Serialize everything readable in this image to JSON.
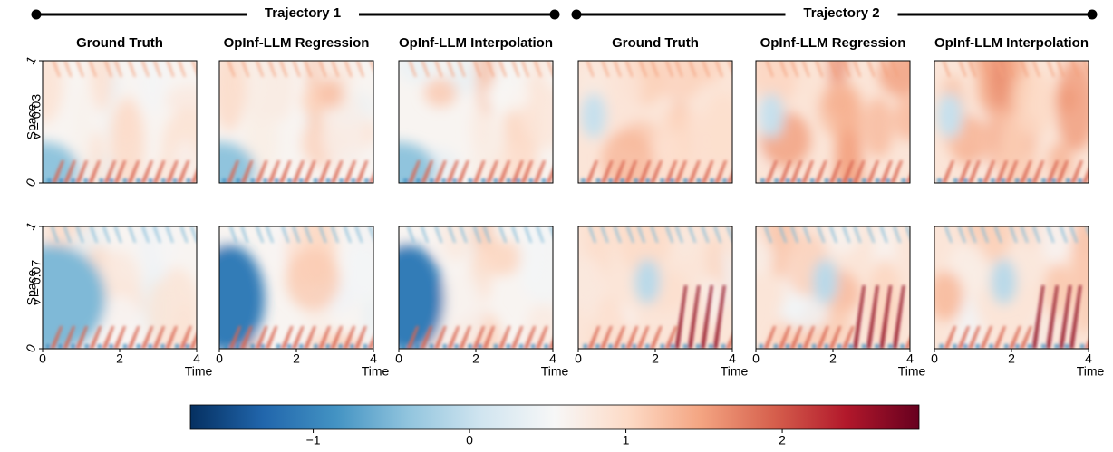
{
  "trajectories": [
    {
      "title": "Trajectory 1",
      "columns": [
        "Ground Truth",
        "OpInf-LLM Regression",
        "OpInf-LLM Interpolation"
      ]
    },
    {
      "title": "Trajectory 2",
      "columns": [
        "Ground Truth",
        "OpInf-LLM Regression",
        "OpInf-LLM Interpolation"
      ]
    }
  ],
  "rows": [
    "ν = 0.03",
    "ν = 0.07"
  ],
  "y_label": "Space",
  "x_label": "Time",
  "xlim": [
    0,
    4
  ],
  "xticks": [
    0,
    2,
    4
  ],
  "ylim": [
    0,
    1
  ],
  "yticks": [
    0,
    1
  ],
  "colorbar": {
    "lim": [
      -1.786,
      2.875
    ],
    "ticks": [
      {
        "value": -1,
        "label": "−1"
      },
      0,
      1,
      2
    ],
    "colors": [
      "#053061",
      "#2166ac",
      "#4393c3",
      "#92c5de",
      "#d1e5f0",
      "#f7f7f7",
      "#fddbc7",
      "#f4a582",
      "#d6604d",
      "#b2182b",
      "#67001f"
    ]
  }
}
